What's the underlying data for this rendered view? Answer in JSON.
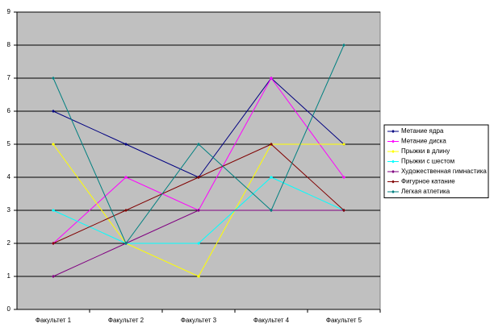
{
  "chart_data": {
    "type": "line",
    "categories": [
      "Факультет 1",
      "Факультет 2",
      "Факультет 3",
      "Факультет 4",
      "Факультет 5"
    ],
    "series": [
      {
        "name": "Метание ядра",
        "color": "#000080",
        "values": [
          6,
          5,
          4,
          7,
          5
        ]
      },
      {
        "name": "Метание диска",
        "color": "#ff00ff",
        "values": [
          2,
          4,
          3,
          7,
          4
        ]
      },
      {
        "name": "Прыжки в длину",
        "color": "#ffff00",
        "values": [
          5,
          2,
          1,
          5,
          5
        ]
      },
      {
        "name": "Прыжки с шестом",
        "color": "#00ffff",
        "values": [
          3,
          2,
          2,
          4,
          3
        ]
      },
      {
        "name": "Художественная гимнастика",
        "color": "#800080",
        "values": [
          1,
          2,
          3,
          3,
          3
        ]
      },
      {
        "name": "Фигурное катание",
        "color": "#800000",
        "values": [
          2,
          3,
          4,
          5,
          3
        ]
      },
      {
        "name": "Легкая атлетика",
        "color": "#008080",
        "values": [
          7,
          2,
          5,
          3,
          8
        ]
      }
    ],
    "ylim": [
      0,
      9
    ],
    "yticks": [
      0,
      1,
      2,
      3,
      4,
      5,
      6,
      7,
      8,
      9
    ],
    "grid": true,
    "legend": "right",
    "plot_color": "#c0c0c0"
  }
}
